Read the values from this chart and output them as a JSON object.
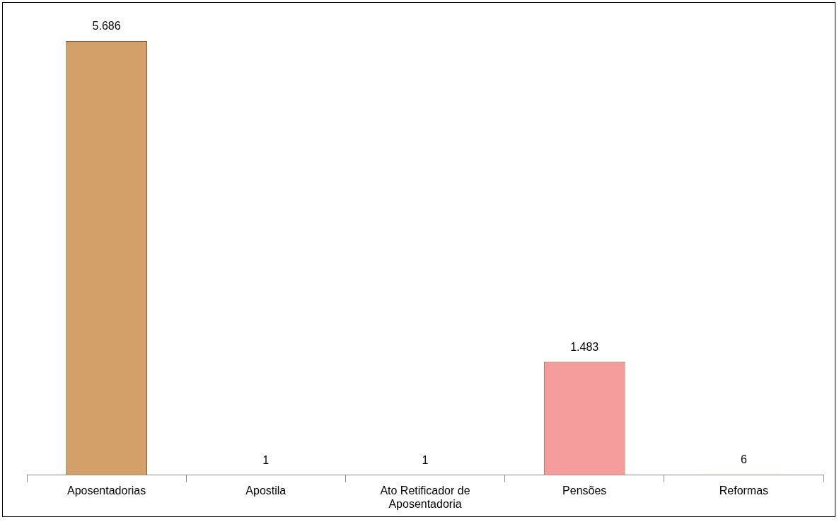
{
  "chart_data": {
    "type": "bar",
    "categories": [
      "Aposentadorias",
      "Apostila",
      "Ato Retificador de Aposentadoria",
      "Pensões",
      "Reformas"
    ],
    "values": [
      5686,
      1,
      1,
      1483,
      6
    ],
    "colors": [
      "#d4a06a",
      "#d4a06a",
      "#d4a06a",
      "#f59d9d",
      "#d4a06a"
    ],
    "value_labels": [
      "5.686",
      "1",
      "1",
      "1.483",
      "6"
    ],
    "grid": false,
    "legend": false
  }
}
